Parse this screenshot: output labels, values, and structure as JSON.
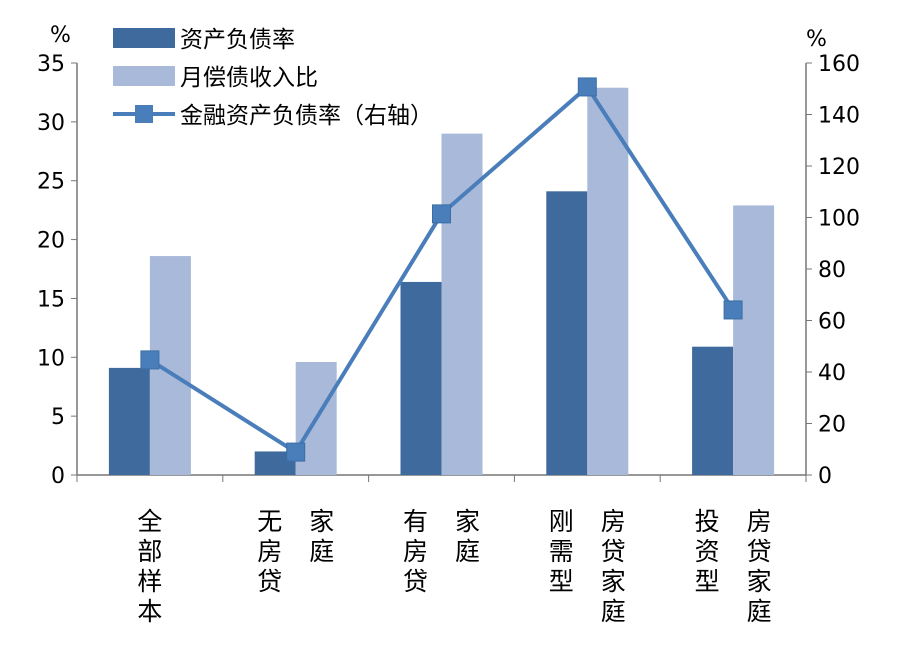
{
  "chart_data": {
    "type": "bar",
    "left_axis": {
      "unit_label": "%",
      "ylim": [
        0,
        35
      ],
      "ticks": [
        0,
        5,
        10,
        15,
        20,
        25,
        30,
        35
      ]
    },
    "right_axis": {
      "unit_label": "%",
      "ylim": [
        0,
        160
      ],
      "ticks": [
        0,
        20,
        40,
        60,
        80,
        100,
        120,
        140,
        160
      ]
    },
    "categories": [
      {
        "label": "全部样本",
        "columns": [
          "全部样本"
        ]
      },
      {
        "label": "无房贷家庭",
        "columns": [
          "无房贷",
          "家庭"
        ]
      },
      {
        "label": "有房贷家庭",
        "columns": [
          "有房贷",
          "家庭"
        ]
      },
      {
        "label": "刚需型房贷家庭",
        "columns": [
          "刚需型",
          "房贷家庭"
        ]
      },
      {
        "label": "投资型房贷家庭",
        "columns": [
          "投资型",
          "房贷家庭"
        ]
      }
    ],
    "series": [
      {
        "name": "资产负债率",
        "type": "bar",
        "axis": "left",
        "color": "#3e6a9e",
        "values": [
          9.1,
          2.0,
          16.4,
          24.1,
          10.9
        ]
      },
      {
        "name": "月偿债收入比",
        "type": "bar",
        "axis": "left",
        "color": "#a9b9d9",
        "values": [
          18.6,
          9.6,
          29.0,
          32.9,
          22.9
        ]
      },
      {
        "name": "金融资产负债率（右轴）",
        "type": "line",
        "axis": "right",
        "color": "#4a7ebb",
        "marker": "square",
        "values": [
          44.7,
          8.9,
          101.4,
          150.7,
          64.1
        ]
      }
    ],
    "legend": "top-left",
    "grid": false
  }
}
